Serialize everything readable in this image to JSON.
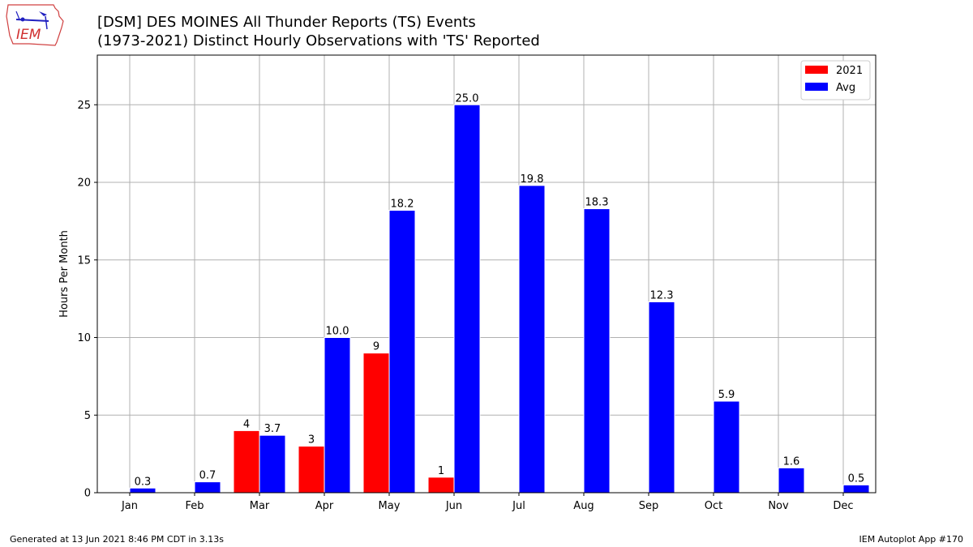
{
  "logo": {
    "text": "IEM"
  },
  "chart_data": {
    "type": "bar",
    "title": "[DSM] DES MOINES All Thunder Reports (TS) Events",
    "subtitle": "(1973-2021) Distinct Hourly Observations with 'TS' Reported",
    "xlabel": "",
    "ylabel": "Hours Per Month",
    "ylim": [
      0,
      28.2
    ],
    "yticks": [
      0,
      5,
      10,
      15,
      20,
      25
    ],
    "categories": [
      "Jan",
      "Feb",
      "Mar",
      "Apr",
      "May",
      "Jun",
      "Jul",
      "Aug",
      "Sep",
      "Oct",
      "Nov",
      "Dec"
    ],
    "series": [
      {
        "name": "2021",
        "color": "#ff0000",
        "values": [
          null,
          null,
          4,
          3,
          9,
          1,
          null,
          null,
          null,
          null,
          null,
          null
        ],
        "labels": [
          "",
          "",
          "4",
          "3",
          "9",
          "1",
          "",
          "",
          "",
          "",
          "",
          ""
        ]
      },
      {
        "name": "Avg",
        "color": "#0000ff",
        "values": [
          0.3,
          0.7,
          3.7,
          10.0,
          18.2,
          25.0,
          19.8,
          18.3,
          12.3,
          5.9,
          1.6,
          0.5
        ],
        "labels": [
          "0.3",
          "0.7",
          "3.7",
          "10.0",
          "18.2",
          "25.0",
          "19.8",
          "18.3",
          "12.3",
          "5.9",
          "1.6",
          "0.5"
        ]
      }
    ],
    "grid": true,
    "legend_position": "top-right"
  },
  "footer": {
    "left": "Generated at 13 Jun 2021 8:46 PM CDT in 3.13s",
    "right": "IEM Autoplot App #170"
  }
}
